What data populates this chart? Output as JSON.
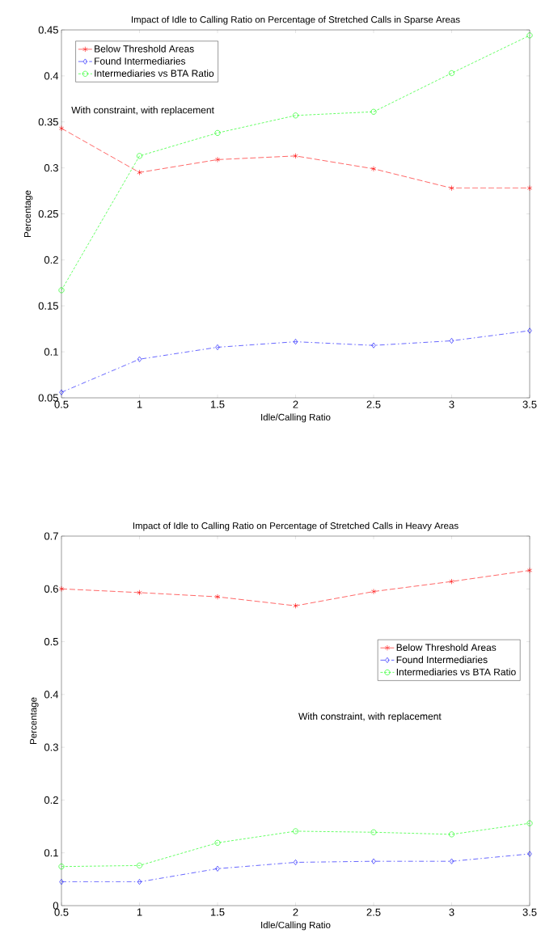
{
  "chart_data": [
    {
      "type": "line",
      "title": "Impact of Idle to Calling Ratio on Percentage of Stretched Calls in Sparse Areas",
      "xlabel": "Idle/Calling Ratio",
      "ylabel": "Percentage",
      "x": [
        0.5,
        1,
        1.5,
        2,
        2.5,
        3,
        3.5
      ],
      "series": [
        {
          "name": "Below Threshold Areas",
          "color": "#ff0000",
          "marker": "cross",
          "line_style": "dashed",
          "values": [
            0.343,
            0.295,
            0.309,
            0.313,
            0.299,
            0.278,
            0.278
          ]
        },
        {
          "name": "Found Intermediaries",
          "color": "#0000ff",
          "marker": "diamond",
          "line_style": "dashed",
          "values": [
            0.056,
            0.092,
            0.105,
            0.111,
            0.107,
            0.112,
            0.123
          ]
        },
        {
          "name": "Intermediaries vs BTA Ratio",
          "color": "#00ff00",
          "marker": "circle",
          "line_style": "dashed",
          "values": [
            0.167,
            0.313,
            0.338,
            0.357,
            0.361,
            0.403,
            0.444
          ]
        }
      ],
      "xlim": [
        0.5,
        3.5
      ],
      "ylim": [
        0.05,
        0.45
      ],
      "xticks": [
        0.5,
        1,
        1.5,
        2,
        2.5,
        3,
        3.5
      ],
      "yticks": [
        0.05,
        0.1,
        0.15,
        0.2,
        0.25,
        0.3,
        0.35,
        0.4,
        0.45
      ],
      "legend": "top left",
      "grid": false,
      "annotations": [
        "With constraint, with replacement"
      ]
    },
    {
      "type": "line",
      "title": "Impact of Idle to Calling Ratio on Percentage of Stretched Calls in Heavy Areas",
      "xlabel": "Idle/Calling Ratio",
      "ylabel": "Percentage",
      "x": [
        0.5,
        1,
        1.5,
        2,
        2.5,
        3,
        3.5
      ],
      "series": [
        {
          "name": "Below Threshold Areas",
          "color": "#ff0000",
          "marker": "cross",
          "line_style": "dashed",
          "values": [
            0.6,
            0.593,
            0.585,
            0.568,
            0.595,
            0.614,
            0.635
          ]
        },
        {
          "name": "Found Intermediaries",
          "color": "#0000ff",
          "marker": "diamond",
          "line_style": "dashed",
          "values": [
            0.045,
            0.045,
            0.07,
            0.082,
            0.084,
            0.084,
            0.098
          ]
        },
        {
          "name": "Intermediaries vs BTA Ratio",
          "color": "#00ff00",
          "marker": "circle",
          "line_style": "dashed",
          "values": [
            0.074,
            0.076,
            0.119,
            0.141,
            0.139,
            0.135,
            0.156
          ]
        }
      ],
      "xlim": [
        0.5,
        3.5
      ],
      "ylim": [
        0,
        0.7
      ],
      "xticks": [
        0.5,
        1,
        1.5,
        2,
        2.5,
        3,
        3.5
      ],
      "yticks": [
        0,
        0.1,
        0.2,
        0.3,
        0.4,
        0.5,
        0.6,
        0.7
      ],
      "legend": "right",
      "grid": false,
      "annotations": [
        "With constraint, with replacement"
      ]
    }
  ]
}
